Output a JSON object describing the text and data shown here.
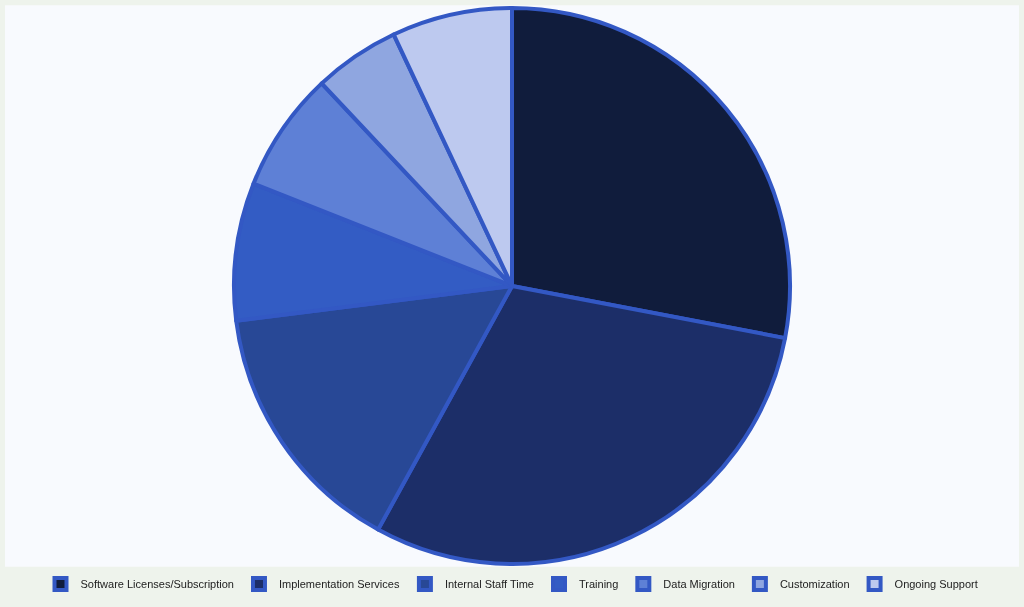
{
  "chart_data": {
    "type": "pie",
    "categories": [
      "Software Licenses/Subscription",
      "Implementation Services",
      "Internal Staff Time",
      "Training",
      "Data Migration",
      "Customization",
      "Ongoing Support"
    ],
    "values": [
      28,
      30,
      15,
      8,
      7,
      5,
      7
    ],
    "colors": [
      "#101c3c",
      "#1c2e68",
      "#284896",
      "#335cc4",
      "#5e80d6",
      "#8fa6e0",
      "#bdc9ef"
    ],
    "legend": "bottom"
  }
}
